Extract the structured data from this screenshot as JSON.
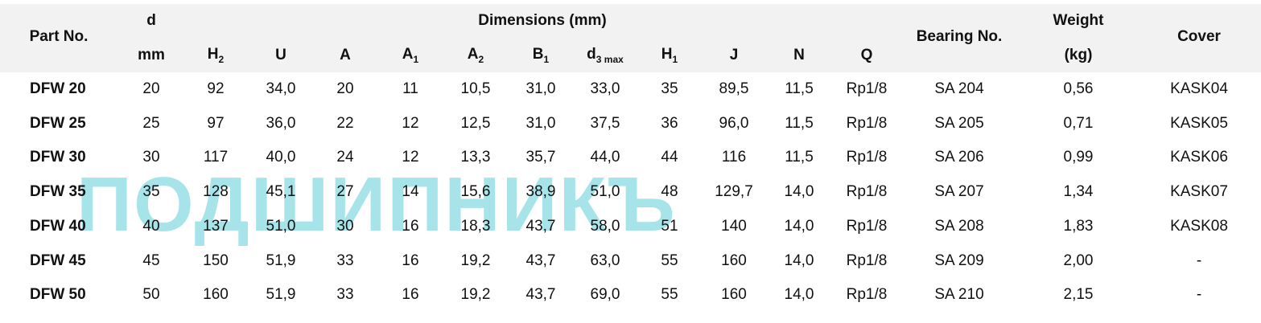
{
  "header": {
    "part_no": "Part No.",
    "d": "d",
    "d_unit": "mm",
    "dimensions": "Dimensions (mm)",
    "bearing_no": "Bearing No.",
    "weight": "Weight",
    "weight_unit": "(kg)",
    "cover": "Cover",
    "columns": [
      {
        "label": "H",
        "sub": "2"
      },
      {
        "label": "U"
      },
      {
        "label": "A"
      },
      {
        "label": "A",
        "sub": "1"
      },
      {
        "label": "A",
        "sub": "2"
      },
      {
        "label": "B",
        "sub": "1"
      },
      {
        "label": "d",
        "sub": "3 max"
      },
      {
        "label": "H",
        "sub": "1"
      },
      {
        "label": "J"
      },
      {
        "label": "N"
      },
      {
        "label": "Q"
      }
    ]
  },
  "table": {
    "rows": [
      [
        "DFW 20",
        "20",
        "92",
        "34,0",
        "20",
        "11",
        "10,5",
        "31,0",
        "33,0",
        "35",
        "89,5",
        "11,5",
        "Rp1/8",
        "SA 204",
        "0,56",
        "KASK04"
      ],
      [
        "DFW 25",
        "25",
        "97",
        "36,0",
        "22",
        "12",
        "12,5",
        "31,0",
        "37,5",
        "36",
        "96,0",
        "11,5",
        "Rp1/8",
        "SA 205",
        "0,71",
        "KASK05"
      ],
      [
        "DFW 30",
        "30",
        "117",
        "40,0",
        "24",
        "12",
        "13,3",
        "35,7",
        "44,0",
        "44",
        "116",
        "11,5",
        "Rp1/8",
        "SA 206",
        "0,99",
        "KASK06"
      ],
      [
        "DFW 35",
        "35",
        "128",
        "45,1",
        "27",
        "14",
        "15,6",
        "38,9",
        "51,0",
        "48",
        "129,7",
        "14,0",
        "Rp1/8",
        "SA 207",
        "1,34",
        "KASK07"
      ],
      [
        "DFW 40",
        "40",
        "137",
        "51,0",
        "30",
        "16",
        "18,3",
        "43,7",
        "58,0",
        "51",
        "140",
        "14,0",
        "Rp1/8",
        "SA 208",
        "1,83",
        "KASK08"
      ],
      [
        "DFW 45",
        "45",
        "150",
        "51,9",
        "33",
        "16",
        "19,2",
        "43,7",
        "63,0",
        "55",
        "160",
        "14,0",
        "Rp1/8",
        "SA 209",
        "2,00",
        "-"
      ],
      [
        "DFW 50",
        "50",
        "160",
        "51,9",
        "33",
        "16",
        "19,2",
        "43,7",
        "69,0",
        "55",
        "160",
        "14,0",
        "Rp1/8",
        "SA 210",
        "2,15",
        "-"
      ]
    ]
  },
  "watermark": "ПОДШИПНИКЪ"
}
